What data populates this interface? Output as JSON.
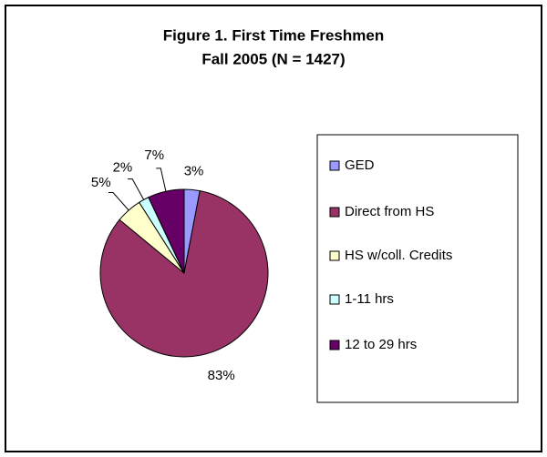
{
  "chart_data": {
    "type": "pie",
    "title": "Figure 1.  First Time Freshmen",
    "subtitle": "Fall 2005 (N = 1427)",
    "categories": [
      "GED",
      "Direct from HS",
      "HS w/coll. Credits",
      "1-11 hrs",
      "12 to 29 hrs"
    ],
    "values": [
      3,
      83,
      5,
      2,
      7
    ],
    "colors": [
      "#9999ff",
      "#993366",
      "#ffffcc",
      "#ccffff",
      "#660066"
    ],
    "legend": "right"
  }
}
